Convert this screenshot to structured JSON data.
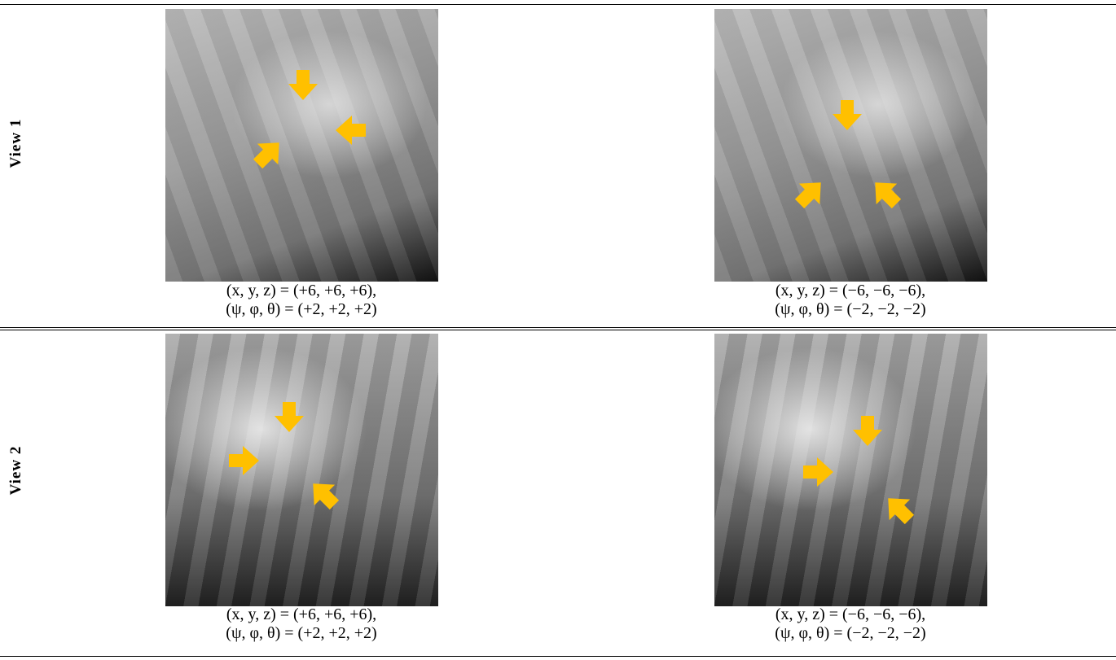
{
  "rows": [
    {
      "label": "View 1",
      "cells": [
        {
          "caption": [
            "(x, y, z) = (+6, +6, +6),",
            "(ψ, φ, θ) = (+2, +2, +2)"
          ]
        },
        {
          "caption": [
            "(x, y, z) = (−6, −6, −6),",
            "(ψ, φ, θ) = (−2, −2, −2)"
          ]
        }
      ]
    },
    {
      "label": "View 2",
      "cells": [
        {
          "caption": [
            "(x, y, z) = (+6, +6, +6),",
            "(ψ, φ, θ) = (+2, +2, +2)"
          ]
        },
        {
          "caption": [
            "(x, y, z) = (−6, −6, −6),",
            "(ψ, φ, θ) = (−2, −2, −2)"
          ]
        }
      ]
    }
  ]
}
